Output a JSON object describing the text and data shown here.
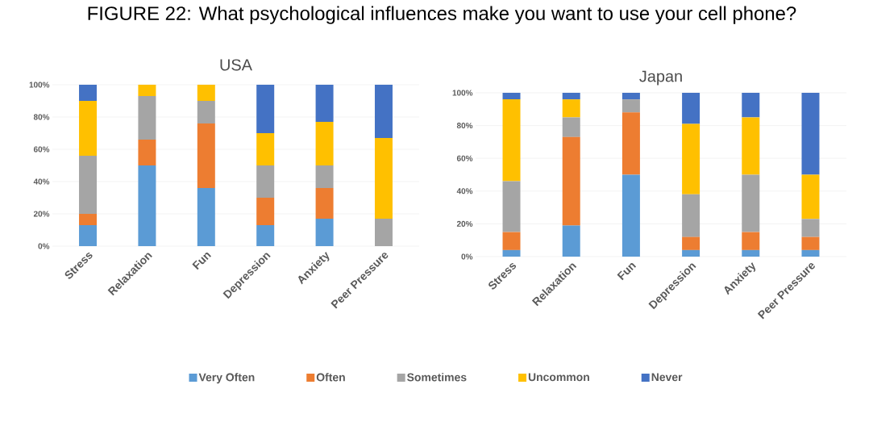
{
  "chart_data": [
    {
      "type": "bar",
      "title": "FIGURE 22: What psychological influences make you want to use your cell phone?",
      "subtitle": "USA",
      "stacked": true,
      "grid": "y",
      "legend": "bottom",
      "categories": [
        "Stress",
        "Relaxation",
        "Fun",
        "Depression",
        "Anxiety",
        "Peer Pressure"
      ],
      "ylim": [
        0,
        100
      ],
      "yticks": [
        {
          "value": 0,
          "label": "0%"
        },
        {
          "value": 20,
          "label": "20%"
        },
        {
          "value": 40,
          "label": "40%"
        },
        {
          "value": 60,
          "label": "60%"
        },
        {
          "value": 80,
          "label": "80%"
        },
        {
          "value": 100,
          "label": "100%"
        }
      ],
      "series": [
        {
          "name": "Very Often",
          "color": "#5b9bd5",
          "values": [
            13,
            50,
            36,
            13,
            17,
            0
          ]
        },
        {
          "name": "Often",
          "color": "#ed7d31",
          "values": [
            7,
            16,
            40,
            17,
            19,
            0
          ]
        },
        {
          "name": "Sometimes",
          "color": "#a5a5a5",
          "values": [
            36,
            27,
            14,
            20,
            14,
            17
          ]
        },
        {
          "name": "Uncommon",
          "color": "#ffc000",
          "values": [
            34,
            7,
            10,
            20,
            27,
            50
          ]
        },
        {
          "name": "Never",
          "color": "#4472c4",
          "values": [
            10,
            0,
            0,
            30,
            23,
            33
          ]
        }
      ]
    },
    {
      "type": "bar",
      "title": "Japan",
      "stacked": true,
      "grid": "y",
      "categories": [
        "Stress",
        "Relaxation",
        "Fun",
        "Depression",
        "Anxiety",
        "Peer Pressure"
      ],
      "ylim": [
        0,
        100
      ],
      "yticks": [
        {
          "value": 0,
          "label": "0%"
        },
        {
          "value": 20,
          "label": "20%"
        },
        {
          "value": 40,
          "label": "40%"
        },
        {
          "value": 60,
          "label": "60%"
        },
        {
          "value": 80,
          "label": "80%"
        },
        {
          "value": 100,
          "label": "100%"
        }
      ],
      "series": [
        {
          "color": "#5b9bd5",
          "values": [
            4,
            19,
            50,
            4,
            4,
            4
          ]
        },
        {
          "color": "#ed7d31",
          "values": [
            11,
            54,
            38,
            8,
            11,
            8
          ]
        },
        {
          "color": "#a5a5a5",
          "values": [
            31,
            12,
            8,
            26,
            35,
            11
          ]
        },
        {
          "color": "#ffc000",
          "values": [
            50,
            11,
            0,
            43,
            35,
            27
          ]
        },
        {
          "color": "#4472c4",
          "values": [
            4,
            4,
            4,
            19,
            15,
            50
          ]
        }
      ]
    }
  ]
}
